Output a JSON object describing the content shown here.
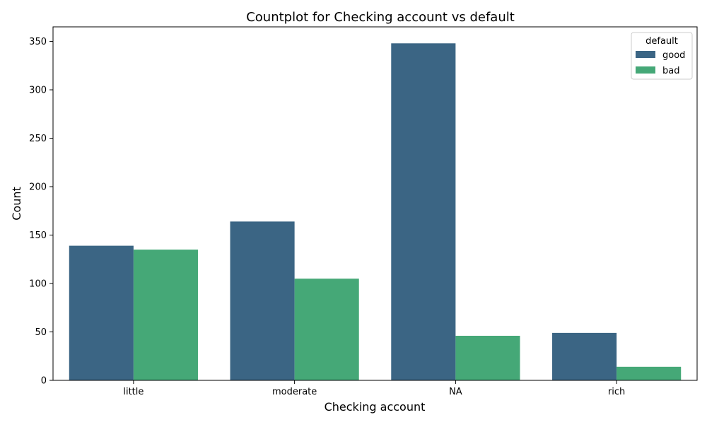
{
  "chart_data": {
    "type": "bar",
    "title": "Countplot for Checking account vs default",
    "xlabel": "Checking account",
    "ylabel": "Count",
    "categories": [
      "little",
      "moderate",
      "NA",
      "rich"
    ],
    "series": [
      {
        "name": "good",
        "values": [
          139,
          164,
          348,
          49
        ],
        "color": "#3b6584"
      },
      {
        "name": "bad",
        "values": [
          135,
          105,
          46,
          14
        ],
        "color": "#45a877"
      }
    ],
    "ylim": [
      0,
      365
    ],
    "yticks": [
      "0",
      "50",
      "100",
      "150",
      "200",
      "250",
      "300",
      "350"
    ],
    "legend": {
      "title": "default",
      "placement": "top-right"
    },
    "grid": false
  }
}
